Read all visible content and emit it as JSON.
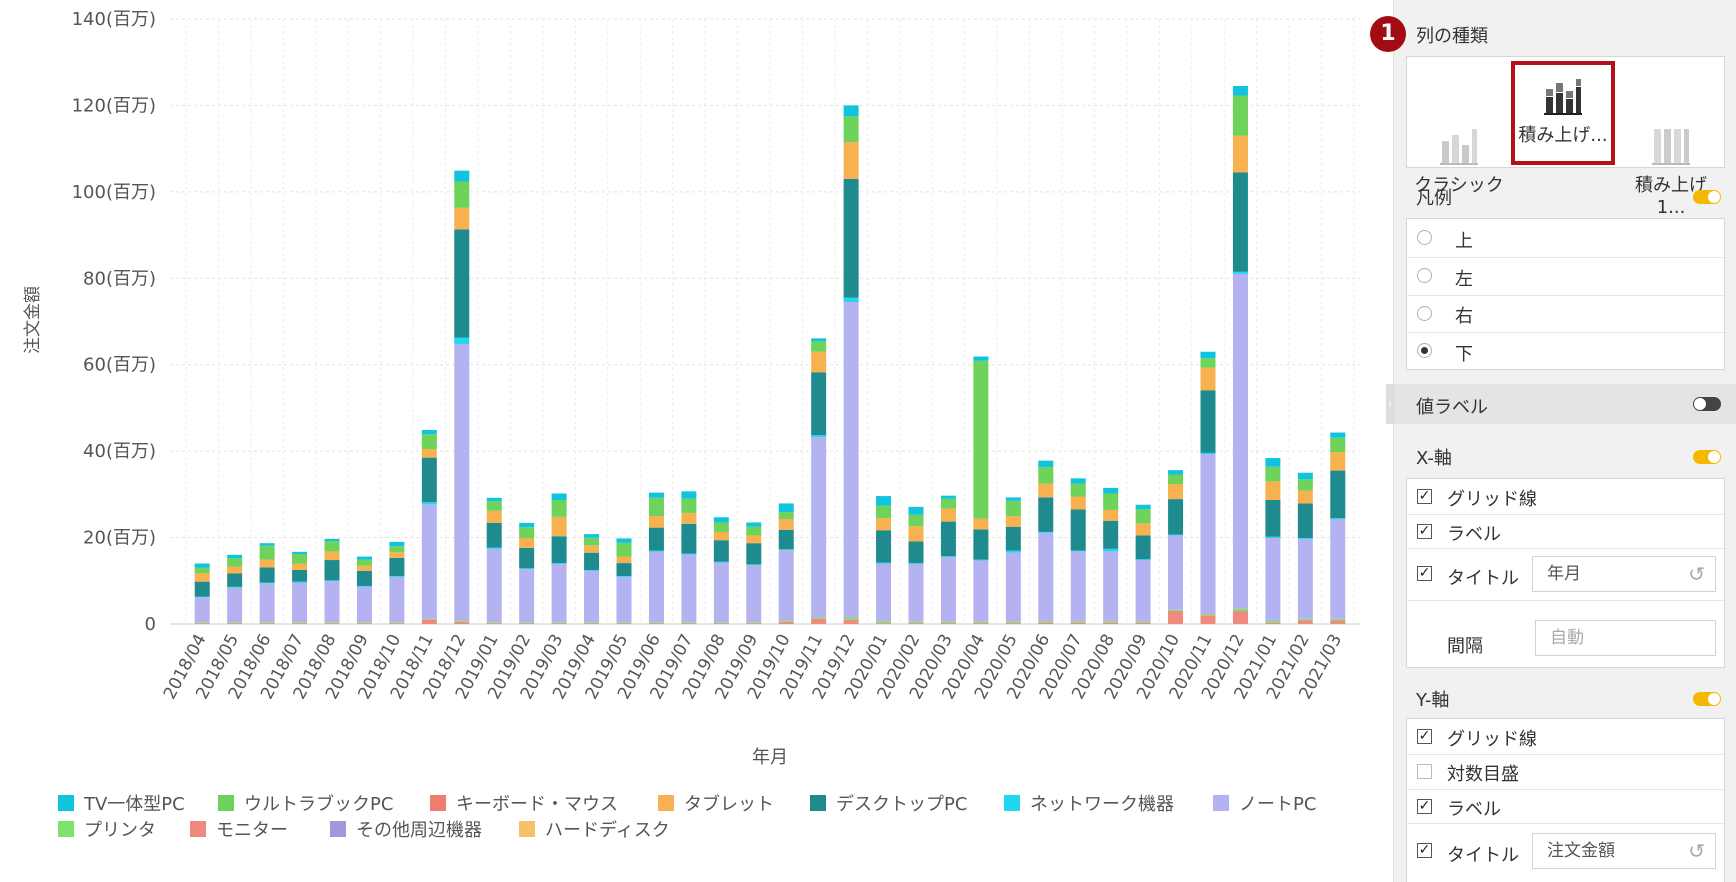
{
  "chart_data": {
    "type": "bar",
    "stacked": true,
    "ylabel": "注文金額",
    "xlabel": "年月",
    "ylim": [
      0,
      140
    ],
    "yticks": [
      "0",
      "20(百万)",
      "40(百万)",
      "60(百万)",
      "80(百万)",
      "100(百万)",
      "120(百万)",
      "140(百万)"
    ],
    "grid": true,
    "legend_position": "bottom",
    "categories": [
      "2018/04",
      "2018/05",
      "2018/06",
      "2018/07",
      "2018/08",
      "2018/09",
      "2018/10",
      "2018/11",
      "2018/12",
      "2019/01",
      "2019/02",
      "2019/03",
      "2019/04",
      "2019/05",
      "2019/06",
      "2019/07",
      "2019/08",
      "2019/09",
      "2019/10",
      "2019/11",
      "2019/12",
      "2020/01",
      "2020/02",
      "2020/03",
      "2020/04",
      "2020/05",
      "2020/06",
      "2020/07",
      "2020/08",
      "2020/09",
      "2020/10",
      "2020/11",
      "2020/12",
      "2021/01",
      "2021/02",
      "2021/03"
    ],
    "series": [
      {
        "name": "モニター",
        "color": "#f08a7e",
        "values": [
          0.2,
          0.2,
          0.2,
          0.2,
          0.2,
          0.2,
          0.2,
          1.0,
          0.5,
          0.2,
          0.2,
          0.2,
          0.2,
          0.2,
          0.2,
          0.2,
          0.2,
          0.2,
          0.5,
          1.2,
          1.0,
          0.2,
          0.2,
          0.2,
          0.2,
          0.2,
          0.3,
          0.3,
          0.3,
          0.3,
          3.0,
          2.0,
          3.0,
          0.3,
          0.8,
          0.8
        ]
      },
      {
        "name": "プリンタ",
        "color": "#7de36a",
        "values": [
          0.2,
          0.2,
          0.2,
          0.2,
          0.2,
          0.2,
          0.2,
          0.2,
          0.3,
          0.2,
          0.2,
          0.2,
          0.2,
          0.2,
          0.2,
          0.2,
          0.2,
          0.2,
          0.3,
          0.3,
          0.5,
          0.4,
          0.3,
          0.3,
          0.3,
          0.3,
          0.3,
          0.3,
          0.3,
          0.3,
          0.3,
          0.3,
          0.5,
          0.4,
          0.4,
          0.4
        ]
      },
      {
        "name": "ノートPC",
        "color": "#b5b2f2",
        "values": [
          5.8,
          8.0,
          9.0,
          9.2,
          9.5,
          8.2,
          10.5,
          26.5,
          64.0,
          17.0,
          12.3,
          13.5,
          11.9,
          10.5,
          16.3,
          15.7,
          13.8,
          13.2,
          16.3,
          41.7,
          73.0,
          13.4,
          13.4,
          15.0,
          14.2,
          16.0,
          20.5,
          16.2,
          16.2,
          14.2,
          17.2,
          37.0,
          77.5,
          19.2,
          18.5,
          23.0
        ]
      },
      {
        "name": "ネットワーク機器",
        "color": "#22d6ef",
        "values": [
          0.1,
          0.2,
          0.2,
          0.2,
          0.2,
          0.2,
          0.2,
          0.5,
          1.5,
          0.3,
          0.2,
          0.2,
          0.2,
          0.2,
          0.3,
          0.2,
          0.2,
          0.2,
          0.2,
          0.5,
          1.0,
          0.2,
          0.2,
          0.2,
          0.2,
          0.5,
          0.2,
          0.2,
          0.6,
          0.2,
          0.2,
          0.3,
          0.5,
          0.3,
          0.2,
          0.3
        ]
      },
      {
        "name": "デスクトップPC",
        "color": "#1f8b8e",
        "values": [
          3.5,
          3.1,
          3.5,
          2.7,
          4.7,
          3.5,
          4.2,
          10.3,
          25.0,
          5.7,
          4.7,
          6.2,
          4.0,
          3.0,
          5.3,
          6.9,
          5.0,
          4.9,
          4.5,
          14.5,
          27.5,
          7.5,
          5.0,
          8.0,
          7.0,
          5.5,
          8.0,
          9.5,
          6.5,
          5.5,
          8.2,
          14.5,
          23.0,
          8.5,
          8.0,
          11.0
        ]
      },
      {
        "name": "タブレット",
        "color": "#f7b14e",
        "values": [
          2.0,
          1.6,
          1.8,
          1.5,
          2.0,
          1.2,
          1.3,
          2.0,
          5.0,
          2.8,
          2.3,
          4.5,
          1.7,
          1.5,
          2.7,
          2.5,
          1.9,
          1.8,
          2.5,
          4.8,
          8.5,
          2.8,
          3.5,
          3.0,
          2.5,
          2.5,
          3.2,
          3.0,
          2.5,
          2.8,
          3.5,
          5.2,
          8.5,
          4.3,
          3.0,
          4.3
        ]
      },
      {
        "name": "ウルトラブックPC",
        "color": "#6ed35a",
        "values": [
          1.2,
          1.9,
          3.2,
          2.2,
          2.4,
          1.4,
          1.4,
          3.4,
          6.1,
          2.2,
          2.5,
          3.9,
          1.8,
          3.2,
          4.2,
          3.3,
          2.2,
          2.0,
          1.6,
          2.4,
          6.0,
          2.9,
          2.7,
          2.3,
          36.5,
          3.5,
          3.8,
          3.0,
          3.8,
          3.3,
          2.2,
          2.2,
          9.3,
          3.4,
          2.6,
          3.3
        ]
      },
      {
        "name": "TV一体型PC",
        "color": "#10c3de",
        "values": [
          1.0,
          0.8,
          0.6,
          0.5,
          0.5,
          0.7,
          1.0,
          1.0,
          2.5,
          0.8,
          1.0,
          1.5,
          0.8,
          1.0,
          1.2,
          1.7,
          1.2,
          1.0,
          2.0,
          0.7,
          2.5,
          2.2,
          1.8,
          0.7,
          1.0,
          0.8,
          1.5,
          1.2,
          1.3,
          1.0,
          1.0,
          1.5,
          2.2,
          2.0,
          1.5,
          1.2
        ]
      }
    ],
    "legend": [
      {
        "label": "TV一体型PC",
        "color": "#10c3de"
      },
      {
        "label": "ウルトラブックPC",
        "color": "#6ed35a"
      },
      {
        "label": "キーボード・マウス",
        "color": "#f27a6e"
      },
      {
        "label": "タブレット",
        "color": "#f7b14e"
      },
      {
        "label": "デスクトップPC",
        "color": "#1f8b8e"
      },
      {
        "label": "ネットワーク機器",
        "color": "#22d6ef"
      },
      {
        "label": "ノートPC",
        "color": "#b5b2f2"
      },
      {
        "label": "プリンタ",
        "color": "#7de36a"
      },
      {
        "label": "モニター",
        "color": "#f08a7e"
      },
      {
        "label": "その他周辺機器",
        "color": "#a19ad8"
      },
      {
        "label": "ハードディスク",
        "color": "#f8c06a"
      }
    ]
  },
  "panel": {
    "marker": "1",
    "column_type": {
      "title": "列の種類",
      "options": [
        {
          "label": "クラシック"
        },
        {
          "label": "積み上げ..."
        },
        {
          "label": "積み上げ 1..."
        }
      ]
    },
    "legend": {
      "title": "凡例",
      "enabled": true,
      "options": [
        "上",
        "左",
        "右",
        "下"
      ],
      "selected": "下"
    },
    "value_label": {
      "title": "値ラベル",
      "enabled": false
    },
    "x_axis": {
      "title": "X-軸",
      "enabled": true,
      "grid_label": "グリッド線",
      "label_label": "ラベル",
      "title_label": "タイトル",
      "title_value": "年月",
      "interval_label": "間隔",
      "interval_placeholder": "自動"
    },
    "y_axis": {
      "title": "Y-軸",
      "enabled": true,
      "grid_label": "グリッド線",
      "log_label": "対数目盛",
      "label_label": "ラベル",
      "title_label": "タイトル",
      "title_value": "注文金額"
    },
    "colors": {
      "accent": "#f5b800",
      "marker": "#a30b12",
      "toggle_off": "#444444"
    }
  }
}
